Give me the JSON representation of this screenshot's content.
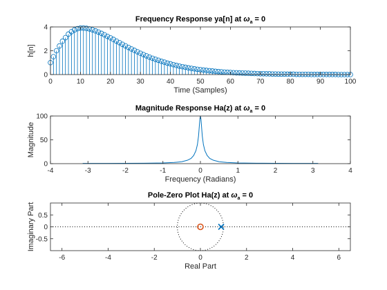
{
  "chart_data": [
    {
      "type": "stem",
      "title": "Frequency Response ya[n] at ",
      "title_omega": "ω",
      "title_sub": "a",
      "title_suffix": " = 0",
      "xlabel": "Time (Samples)",
      "ylabel": "h[n]",
      "xlim": [
        0,
        100
      ],
      "ylim": [
        0,
        4
      ],
      "xticks": [
        0,
        10,
        20,
        30,
        40,
        50,
        60,
        70,
        80,
        90,
        100
      ],
      "yticks": [
        0,
        2,
        4
      ],
      "series": [
        {
          "values": [
            1.0,
            1.5,
            2.0,
            2.4,
            2.8,
            3.1,
            3.4,
            3.6,
            3.75,
            3.85,
            3.9,
            3.9,
            3.88,
            3.83,
            3.76,
            3.67,
            3.57,
            3.46,
            3.34,
            3.21,
            3.08,
            2.95,
            2.81,
            2.68,
            2.54,
            2.41,
            2.28,
            2.15,
            2.03,
            1.91,
            1.79,
            1.68,
            1.57,
            1.47,
            1.37,
            1.28,
            1.2,
            1.11,
            1.04,
            0.96,
            0.9,
            0.83,
            0.77,
            0.71,
            0.66,
            0.61,
            0.56,
            0.52,
            0.48,
            0.44,
            0.41,
            0.38,
            0.35,
            0.32,
            0.3,
            0.27,
            0.25,
            0.23,
            0.21,
            0.19,
            0.18,
            0.16,
            0.15,
            0.14,
            0.13,
            0.12,
            0.11,
            0.1,
            0.09,
            0.08,
            0.07,
            0.07,
            0.06,
            0.06,
            0.05,
            0.05,
            0.04,
            0.04,
            0.04,
            0.03,
            0.03,
            0.03,
            0.02,
            0.02,
            0.02,
            0.02,
            0.02,
            0.01,
            0.01,
            0.01,
            0.01,
            0.01,
            0.01,
            0.01,
            0.01,
            0.01,
            0.0,
            0.0,
            0.0,
            0.0,
            0.0
          ]
        }
      ]
    },
    {
      "type": "line",
      "title": "Magnitude Response Ha(z) at ",
      "title_omega": "ω",
      "title_sub": "a",
      "title_suffix": " = 0",
      "xlabel": "Frequency (Radians)",
      "ylabel": "Magnitude",
      "xlim": [
        -4,
        4
      ],
      "ylim": [
        0,
        100
      ],
      "xticks": [
        -4,
        -3,
        -2,
        -1,
        0,
        1,
        2,
        3,
        4
      ],
      "yticks": [
        0,
        50,
        100
      ],
      "series": [
        {
          "x": [
            -3.14,
            -2.5,
            -2.0,
            -1.5,
            -1.0,
            -0.7,
            -0.5,
            -0.35,
            -0.25,
            -0.18,
            -0.12,
            -0.08,
            -0.05,
            -0.03,
            -0.015,
            0.0,
            0.015,
            0.03,
            0.05,
            0.08,
            0.12,
            0.18,
            0.25,
            0.35,
            0.5,
            0.7,
            1.0,
            1.5,
            2.0,
            2.5,
            3.14
          ],
          "y": [
            0.5,
            0.6,
            0.7,
            0.9,
            1.5,
            2.5,
            4.0,
            7.0,
            11.0,
            17.0,
            27.0,
            40.0,
            58.0,
            78.0,
            93.0,
            100.0,
            93.0,
            78.0,
            58.0,
            40.0,
            27.0,
            17.0,
            11.0,
            7.0,
            4.0,
            2.5,
            1.5,
            0.9,
            0.7,
            0.6,
            0.5
          ]
        }
      ]
    },
    {
      "type": "pole-zero",
      "title": "Pole-Zero Plot Ha(z) at ",
      "title_omega": "ω",
      "title_sub": "a",
      "title_suffix": " = 0",
      "xlabel": "Real Part",
      "ylabel": "Imaginary Part",
      "xlim": [
        -6.5,
        6.5
      ],
      "ylim": [
        -1,
        1
      ],
      "xticks": [
        -6,
        -4,
        -2,
        0,
        2,
        4,
        6
      ],
      "yticks": [
        -0.5,
        0,
        0.5
      ],
      "zeros": [
        [
          0,
          0
        ]
      ],
      "poles": [
        [
          0.9,
          0
        ]
      ],
      "unit_circle": true
    }
  ],
  "colors": {
    "stem": "#0072BD",
    "line": "#0072BD",
    "zero": "#D95319",
    "pole": "#0072BD",
    "axes": "#262626"
  }
}
